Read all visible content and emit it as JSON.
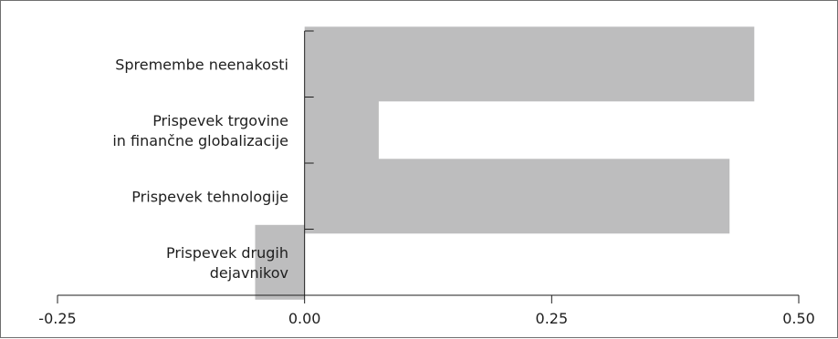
{
  "chart_data": {
    "type": "bar",
    "orientation": "horizontal",
    "categories": [
      [
        "Spremembe neenakosti"
      ],
      [
        "Prispevek trgovine",
        "in finančne globalizacije"
      ],
      [
        "Prispevek tehnologije"
      ],
      [
        "Prispevek drugih",
        "dejavnikov"
      ]
    ],
    "values": [
      0.455,
      0.075,
      0.43,
      -0.05
    ],
    "xlim": [
      -0.25,
      0.5
    ],
    "xticks": [
      -0.25,
      0.0,
      0.25,
      0.5
    ],
    "xtick_labels": [
      "-0.25",
      "0.00",
      "0.25",
      "0.50"
    ],
    "bar_color": "#bdbdbe",
    "axis_color": "#1e1e1e",
    "grid": false,
    "legend": "none",
    "title": "",
    "xlabel": "",
    "ylabel": ""
  }
}
